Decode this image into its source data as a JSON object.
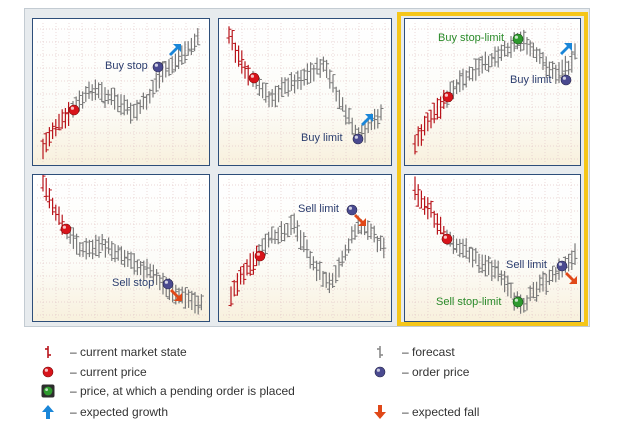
{
  "panels": [
    {
      "id": "buy-stop",
      "labels": [
        {
          "text": "Buy stop",
          "kind": "order"
        }
      ],
      "arrow": "up"
    },
    {
      "id": "buy-limit",
      "labels": [
        {
          "text": "Buy limit",
          "kind": "order"
        }
      ],
      "arrow": "up"
    },
    {
      "id": "buy-stop-limit",
      "labels": [
        {
          "text": "Buy stop-limit",
          "kind": "pending"
        },
        {
          "text": "Buy limit",
          "kind": "order"
        }
      ],
      "arrow": "up"
    },
    {
      "id": "sell-stop",
      "labels": [
        {
          "text": "Sell stop",
          "kind": "order"
        }
      ],
      "arrow": "down"
    },
    {
      "id": "sell-limit",
      "labels": [
        {
          "text": "Sell limit",
          "kind": "order"
        }
      ],
      "arrow": "down"
    },
    {
      "id": "sell-stop-limit",
      "labels": [
        {
          "text": "Sell limit",
          "kind": "order"
        },
        {
          "text": "Sell stop-limit",
          "kind": "pending"
        }
      ],
      "arrow": "down"
    }
  ],
  "legend": {
    "current_market_state": "– current market state",
    "current_price": "– current price",
    "pending_price": "– price, at which a pending order is placed",
    "expected_growth": "– expected growth",
    "forecast": "– forecast",
    "order_price": "– order price",
    "expected_fall": "– expected fall"
  },
  "colors": {
    "market": "#b8141b",
    "forecast": "#7a7a7a",
    "current_price": "#d8141b",
    "order_price": "#4a4a90",
    "pending_price": "#2e9a2e",
    "arrow_up": "#1a86d8",
    "arrow_down": "#e04818",
    "highlight": "#f5c61a"
  }
}
